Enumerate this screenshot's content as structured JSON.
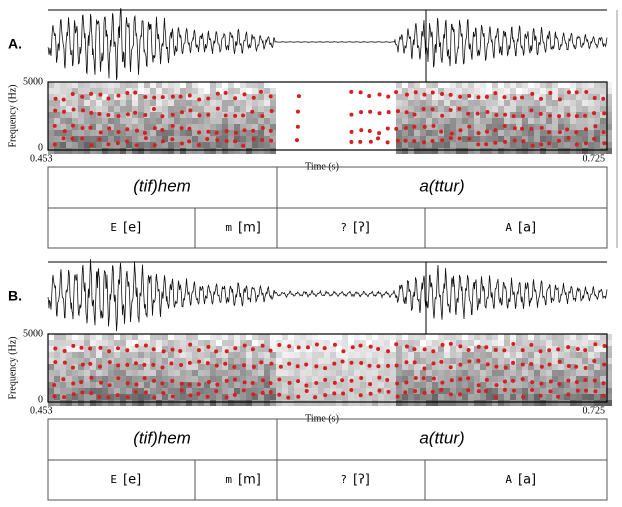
{
  "panels": [
    {
      "label": "A.",
      "y_axis_label": "Frequency (Hz)",
      "y_max": 5000,
      "y_min": 0,
      "x_min": 0.453,
      "x_max": 0.725,
      "x_axis_label": "Time (s)",
      "words": [
        "(tif)hem",
        "a(ttur)"
      ],
      "segments": [
        {
          "symbol": "E",
          "ipa": "[e]"
        },
        {
          "symbol": "m",
          "ipa": "[m]"
        },
        {
          "symbol": "?",
          "ipa": "[ʔ]"
        },
        {
          "symbol": "A",
          "ipa": "[a]"
        }
      ]
    },
    {
      "label": "B.",
      "y_axis_label": "Frequency (Hz)",
      "y_max": 5000,
      "y_min": 0,
      "x_min": 0.453,
      "x_max": 0.725,
      "x_axis_label": "Time (s)",
      "words": [
        "(tif)hem",
        "a(ttur)"
      ],
      "segments": [
        {
          "symbol": "E",
          "ipa": "[e]"
        },
        {
          "symbol": "m",
          "ipa": "[m]"
        },
        {
          "symbol": "?",
          "ipa": "[ʔ]"
        },
        {
          "symbol": "A",
          "ipa": "[a]"
        }
      ]
    }
  ]
}
